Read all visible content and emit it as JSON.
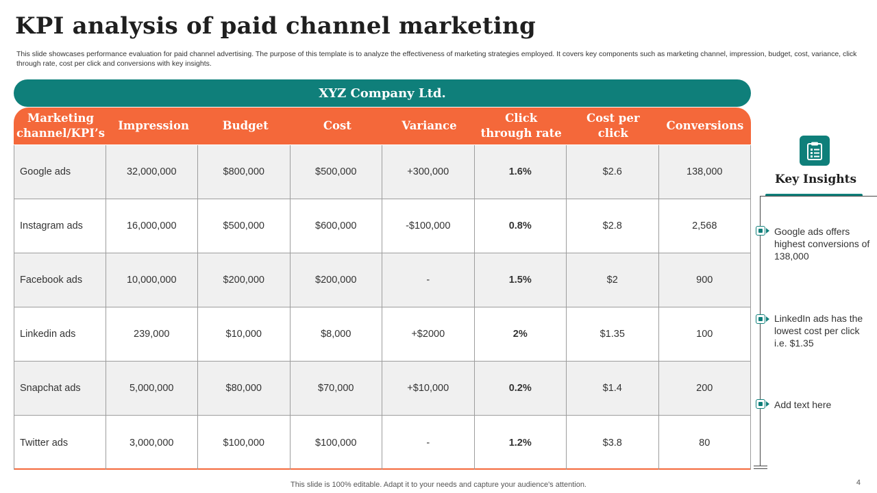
{
  "title": "KPI analysis of paid channel marketing",
  "subtitle": "This slide showcases performance evaluation for paid channel advertising. The purpose of this template is to analyze the effectiveness of marketing strategies employed. It covers key components such as marketing channel, impression, budget, cost, variance, click through rate, cost per click and conversions with key insights.",
  "company": "XYZ Company Ltd.",
  "table": {
    "headers": [
      "Marketing channel/KPI’s",
      "Impression",
      "Budget",
      "Cost",
      "Variance",
      "Click through rate",
      "Cost per click",
      "Conversions"
    ],
    "rows": [
      [
        "Google ads",
        "32,000,000",
        "$800,000",
        "$500,000",
        "+300,000",
        "1.6%",
        "$2.6",
        "138,000"
      ],
      [
        "Instagram ads",
        "16,000,000",
        "$500,000",
        "$600,000",
        "-$100,000",
        "0.8%",
        "$2.8",
        "2,568"
      ],
      [
        "Facebook ads",
        "10,000,000",
        "$200,000",
        "$200,000",
        "-",
        "1.5%",
        "$2",
        "900"
      ],
      [
        "Linkedin ads",
        "239,000",
        "$10,000",
        "$8,000",
        "+$2000",
        "2%",
        "$1.35",
        "100"
      ],
      [
        "Snapchat ads",
        "5,000,000",
        "$80,000",
        "$70,000",
        "+$10,000",
        "0.2%",
        "$1.4",
        "200"
      ],
      [
        "Twitter ads",
        "3,000,000",
        "$100,000",
        "$100,000",
        "-",
        "1.2%",
        "$3.8",
        "80"
      ]
    ]
  },
  "insights": {
    "icon": "clipboard-icon",
    "title": "Key Insights",
    "items": [
      "Google ads offers highest conversions of 138,000",
      "LinkedIn ads has the lowest cost per click i.e. $1.35",
      "Add text here"
    ]
  },
  "footer": "This slide is 100% editable. Adapt it to your needs and capture your audience's attention.",
  "page_number": "4",
  "colors": {
    "teal": "#0f7f7a",
    "orange": "#f4683a",
    "row_shade": "#f0f0f0"
  }
}
